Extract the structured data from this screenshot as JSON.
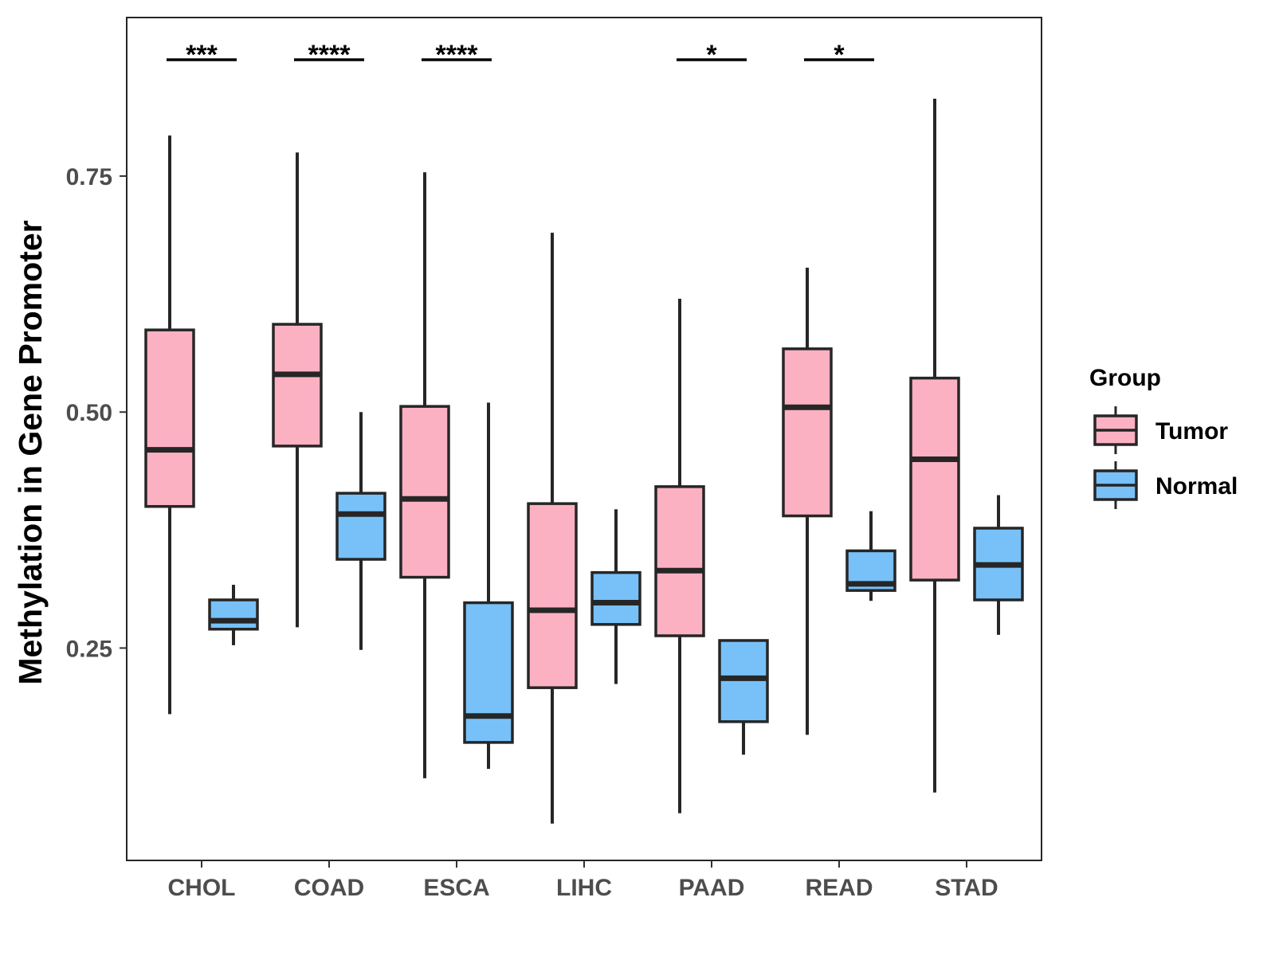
{
  "chart_data": {
    "type": "boxplot",
    "ylabel": "Methylation in Gene Promoter",
    "xlabel": "",
    "ylim": [
      0.025,
      0.918
    ],
    "yticks": [
      0.25,
      0.5,
      0.75
    ],
    "ytick_labels": [
      "0.25",
      "0.50",
      "0.75"
    ],
    "categories": [
      "CHOL",
      "COAD",
      "ESCA",
      "LIHC",
      "PAAD",
      "READ",
      "STAD"
    ],
    "legend": {
      "title": "Group",
      "position": "right",
      "entries": [
        "Tumor",
        "Normal"
      ]
    },
    "series": [
      {
        "name": "Tumor",
        "color": "#fcb1c3",
        "boxes": [
          {
            "whisker_low": 0.18,
            "q1": 0.4,
            "median": 0.46,
            "q3": 0.587,
            "whisker_high": 0.793
          },
          {
            "whisker_low": 0.272,
            "q1": 0.464,
            "median": 0.54,
            "q3": 0.593,
            "whisker_high": 0.775
          },
          {
            "whisker_low": 0.112,
            "q1": 0.325,
            "median": 0.408,
            "q3": 0.506,
            "whisker_high": 0.754
          },
          {
            "whisker_low": 0.064,
            "q1": 0.208,
            "median": 0.29,
            "q3": 0.403,
            "whisker_high": 0.69
          },
          {
            "whisker_low": 0.075,
            "q1": 0.263,
            "median": 0.332,
            "q3": 0.421,
            "whisker_high": 0.62
          },
          {
            "whisker_low": 0.158,
            "q1": 0.39,
            "median": 0.505,
            "q3": 0.567,
            "whisker_high": 0.653
          },
          {
            "whisker_low": 0.097,
            "q1": 0.322,
            "median": 0.45,
            "q3": 0.536,
            "whisker_high": 0.832
          }
        ]
      },
      {
        "name": "Normal",
        "color": "#77c1f8",
        "boxes": [
          {
            "whisker_low": 0.253,
            "q1": 0.27,
            "median": 0.279,
            "q3": 0.301,
            "whisker_high": 0.317
          },
          {
            "whisker_low": 0.248,
            "q1": 0.344,
            "median": 0.392,
            "q3": 0.414,
            "whisker_high": 0.5
          },
          {
            "whisker_low": 0.122,
            "q1": 0.15,
            "median": 0.178,
            "q3": 0.298,
            "whisker_high": 0.51
          },
          {
            "whisker_low": 0.212,
            "q1": 0.275,
            "median": 0.298,
            "q3": 0.33,
            "whisker_high": 0.397
          },
          {
            "whisker_low": 0.137,
            "q1": 0.172,
            "median": 0.218,
            "q3": 0.258,
            "whisker_high": 0.258
          },
          {
            "whisker_low": 0.3,
            "q1": 0.311,
            "median": 0.318,
            "q3": 0.353,
            "whisker_high": 0.395
          },
          {
            "whisker_low": 0.264,
            "q1": 0.301,
            "median": 0.338,
            "q3": 0.377,
            "whisker_high": 0.412
          }
        ]
      }
    ],
    "significance": [
      {
        "category": "CHOL",
        "label": "***"
      },
      {
        "category": "COAD",
        "label": "****"
      },
      {
        "category": "ESCA",
        "label": "****"
      },
      {
        "category": "PAAD",
        "label": "*"
      },
      {
        "category": "READ",
        "label": "*"
      }
    ]
  },
  "colors": {
    "tumor": "#fcb1c3",
    "normal": "#77c1f8",
    "outline": "#262626",
    "axis_text": "#4d4d4d",
    "title_text": "#000000"
  }
}
